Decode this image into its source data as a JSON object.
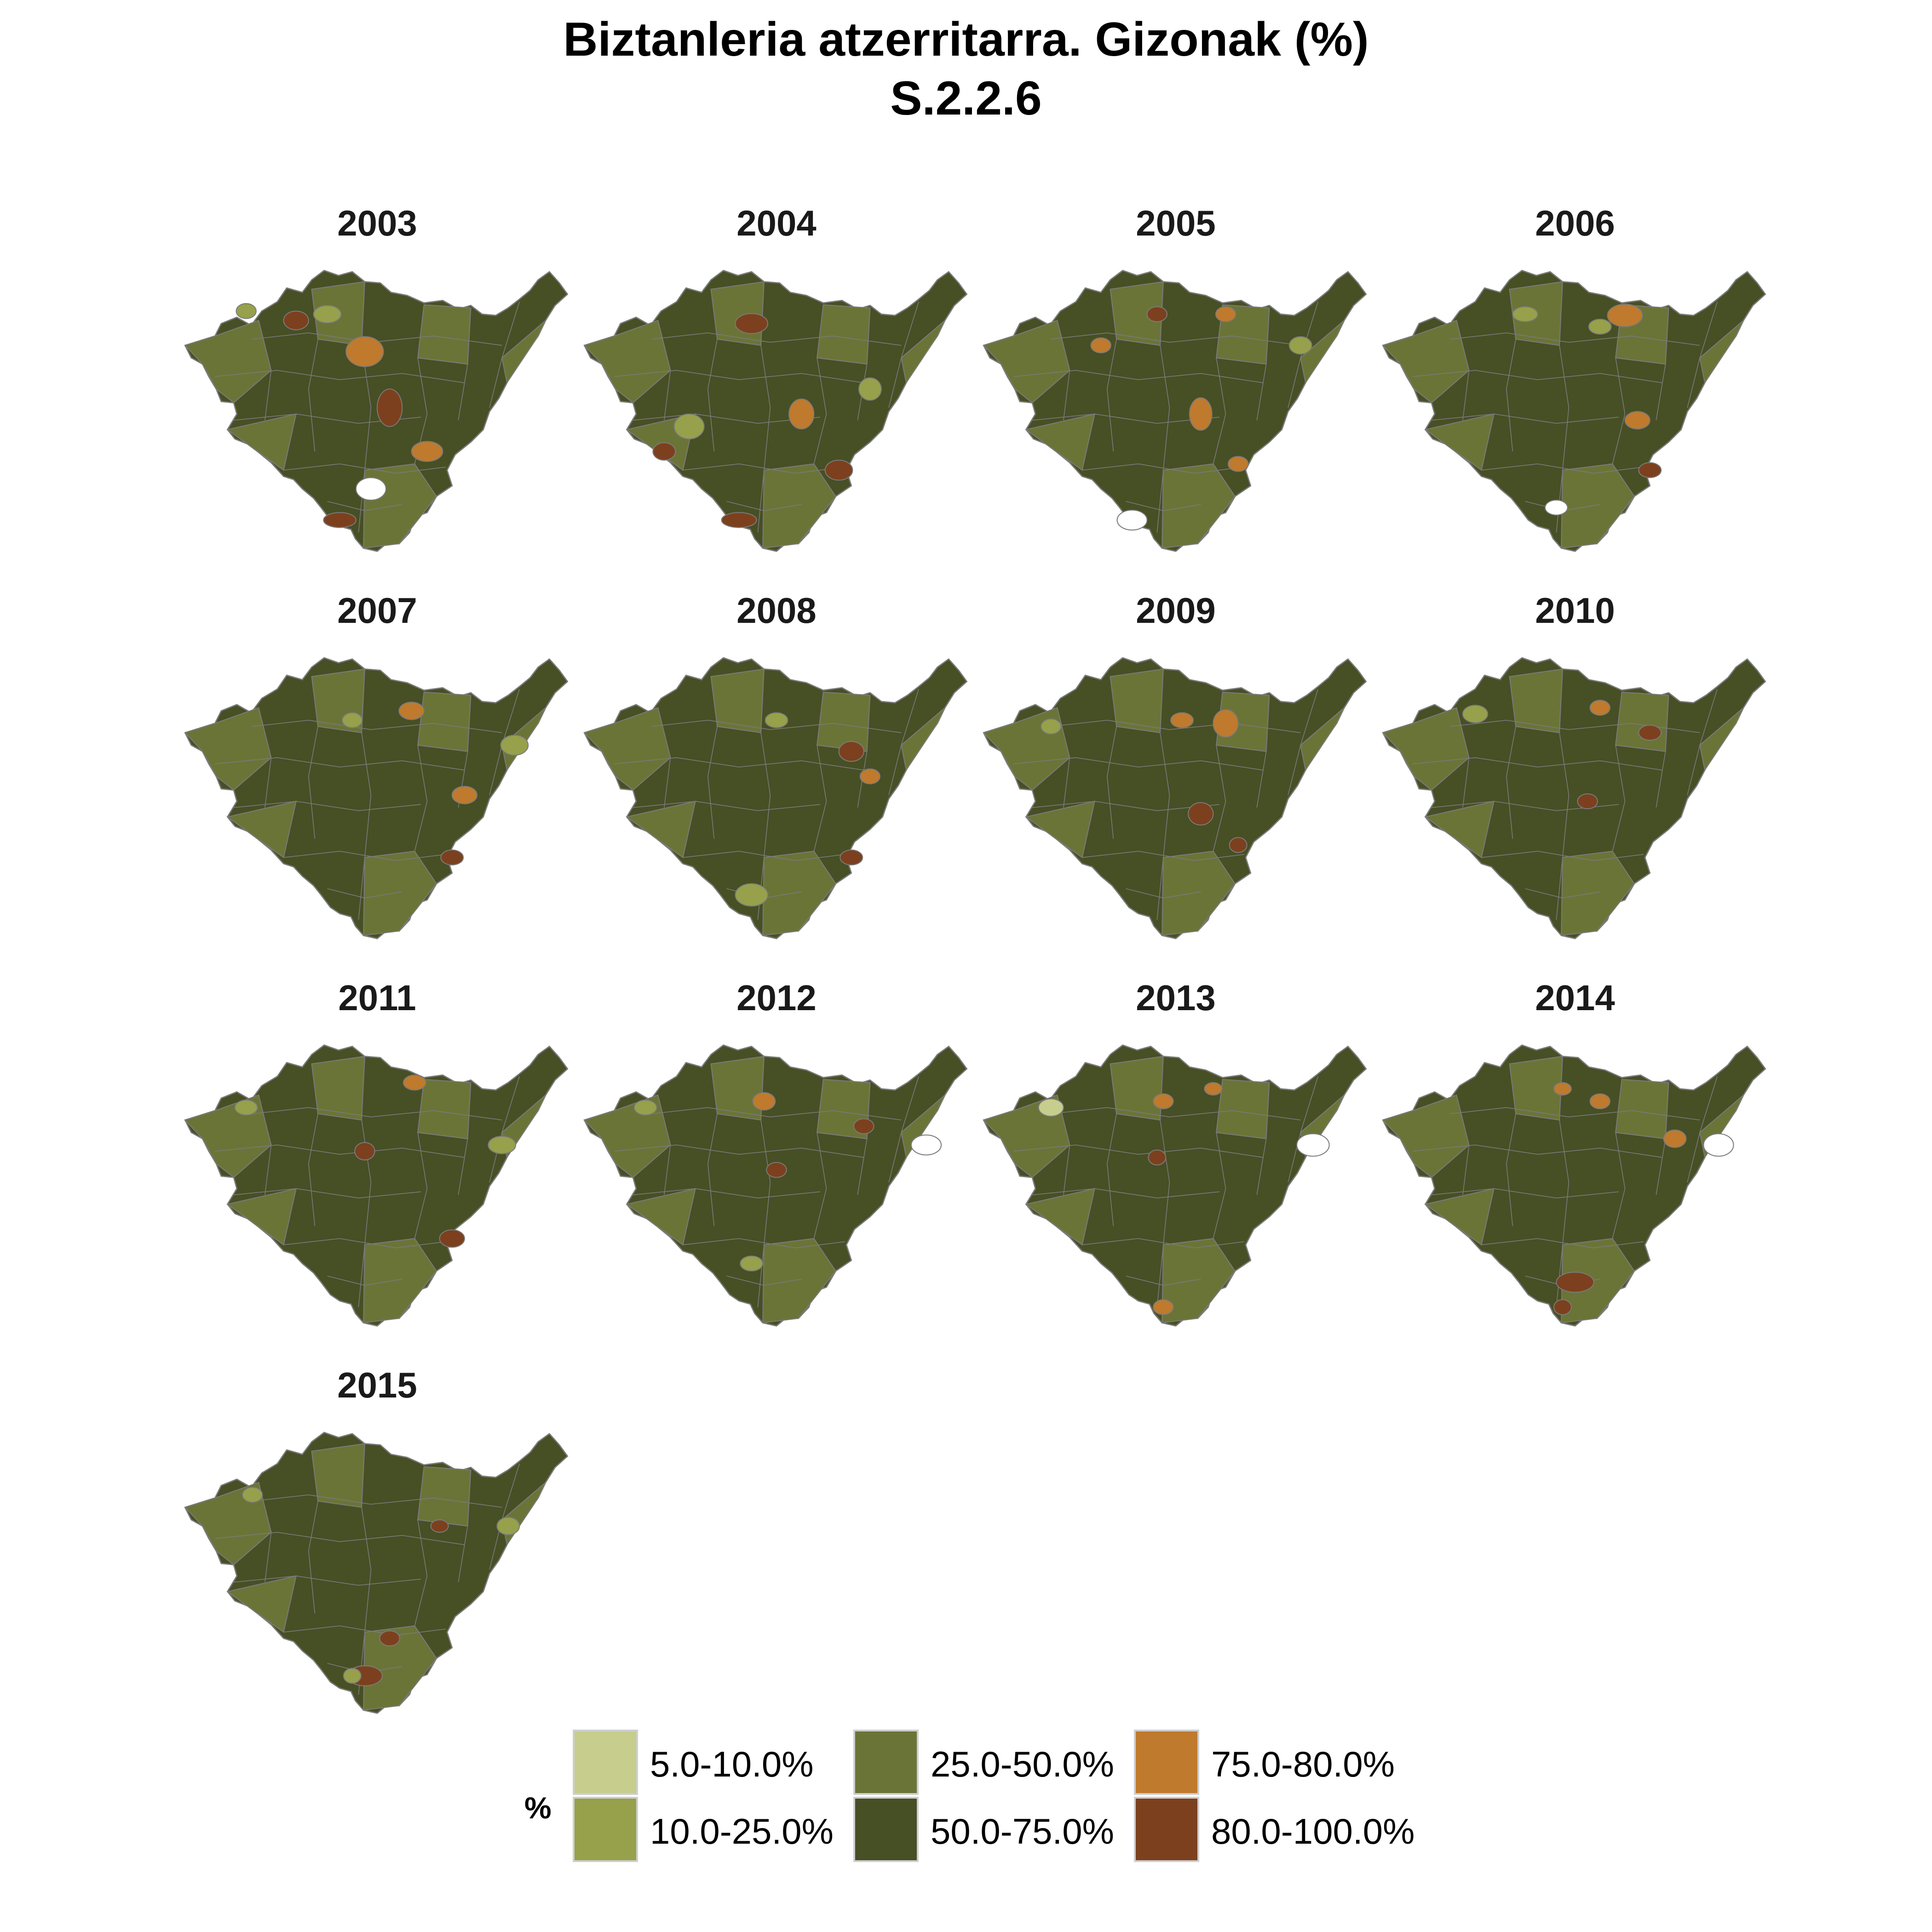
{
  "title": "Biztanleria atzerritarra. Gizonak (%)",
  "subtitle": "S.2.2.6",
  "colors": {
    "c1": "#c6cd8d",
    "c2": "#97a04b",
    "c3": "#6b7437",
    "c4": "#474f25",
    "c5": "#bf7a2d",
    "c6": "#7c401e",
    "border": "#7a7a7a",
    "missing": "#ffffff"
  },
  "panels": [
    {
      "year": "2003"
    },
    {
      "year": "2004"
    },
    {
      "year": "2005"
    },
    {
      "year": "2006"
    },
    {
      "year": "2007"
    },
    {
      "year": "2008"
    },
    {
      "year": "2009"
    },
    {
      "year": "2010"
    },
    {
      "year": "2011"
    },
    {
      "year": "2012"
    },
    {
      "year": "2013"
    },
    {
      "year": "2014"
    },
    {
      "year": "2015"
    }
  ],
  "legend": {
    "title": "%",
    "items": [
      {
        "label": "5.0-10.0%",
        "color": "#c6cd8d"
      },
      {
        "label": "10.0-25.0%",
        "color": "#97a04b"
      },
      {
        "label": "25.0-50.0%",
        "color": "#6b7437"
      },
      {
        "label": "50.0-75.0%",
        "color": "#474f25"
      },
      {
        "label": "75.0-80.0%",
        "color": "#bf7a2d"
      },
      {
        "label": "80.0-100.0%",
        "color": "#7c401e"
      }
    ]
  }
}
